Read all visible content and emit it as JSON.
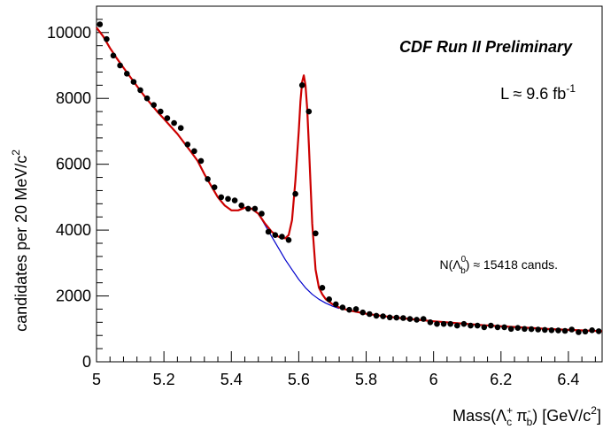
{
  "chart_data": {
    "type": "scatter",
    "annotations": {
      "experiment": "CDF Run II Preliminary",
      "luminosity": {
        "prefix": "L ≈ 9.6 fb",
        "sup": "-1"
      },
      "yield": {
        "prefix": "N(Λ",
        "sup": "0",
        "sub": "b",
        "suffix": ") ≈ 15418 cands."
      }
    },
    "xlabel": {
      "prefix": "Mass(Λ",
      "sup1": "+",
      "sub1": "c",
      "mid": " π",
      "sup2": "-",
      "sub2": "b",
      "suffix": ") [GeV/c",
      "sup3": "2",
      "end": "]"
    },
    "ylabel": {
      "prefix": "candidates per 20 MeV/c",
      "sup": "2"
    },
    "xlim": [
      5.0,
      6.5
    ],
    "ylim": [
      0,
      10800
    ],
    "xticks": [
      5.0,
      5.2,
      5.4,
      5.6,
      5.8,
      6.0,
      6.2,
      6.4
    ],
    "xtick_labels": [
      "5",
      "5.2",
      "5.4",
      "5.6",
      "5.8",
      "6",
      "6.2",
      "6.4"
    ],
    "yticks": [
      0,
      2000,
      4000,
      6000,
      8000,
      10000
    ],
    "ytick_labels": [
      "0",
      "2000",
      "4000",
      "6000",
      "8000",
      "10000"
    ],
    "grid": false,
    "legend": "none",
    "colors": {
      "data": "#000000",
      "fit": "#cc0000",
      "background": "#0000cc"
    },
    "series": [
      {
        "kind": "points",
        "x": [
          5.01,
          5.03,
          5.05,
          5.07,
          5.09,
          5.11,
          5.13,
          5.15,
          5.17,
          5.19,
          5.21,
          5.23,
          5.25,
          5.27,
          5.29,
          5.31,
          5.33,
          5.35,
          5.37,
          5.39,
          5.41,
          5.43,
          5.45,
          5.47,
          5.49,
          5.51,
          5.53,
          5.55,
          5.57,
          5.59,
          5.61,
          5.63,
          5.65,
          5.67,
          5.69,
          5.71,
          5.73,
          5.75,
          5.77,
          5.79,
          5.81,
          5.83,
          5.85,
          5.87,
          5.89,
          5.91,
          5.93,
          5.95,
          5.97,
          5.99,
          6.01,
          6.03,
          6.05,
          6.07,
          6.09,
          6.11,
          6.13,
          6.15,
          6.17,
          6.19,
          6.21,
          6.23,
          6.25,
          6.27,
          6.29,
          6.31,
          6.33,
          6.35,
          6.37,
          6.39,
          6.41,
          6.43,
          6.45,
          6.47,
          6.49
        ],
        "values": [
          10250,
          9800,
          9300,
          9000,
          8750,
          8500,
          8250,
          8000,
          7800,
          7600,
          7400,
          7250,
          7100,
          6600,
          6400,
          6100,
          5550,
          5300,
          5000,
          4950,
          4900,
          4750,
          4650,
          4650,
          4500,
          3950,
          3850,
          3800,
          3700,
          5100,
          8400,
          7600,
          3900,
          2250,
          1900,
          1750,
          1650,
          1580,
          1600,
          1500,
          1450,
          1400,
          1380,
          1350,
          1340,
          1330,
          1300,
          1280,
          1300,
          1200,
          1150,
          1150,
          1150,
          1100,
          1150,
          1100,
          1100,
          1050,
          1100,
          1050,
          1050,
          1000,
          1030,
          1000,
          990,
          980,
          970,
          960,
          950,
          940,
          980,
          900,
          920,
          960,
          930
        ]
      },
      {
        "kind": "line",
        "name": "fit",
        "x": [
          5.0,
          5.02,
          5.04,
          5.06,
          5.08,
          5.1,
          5.12,
          5.14,
          5.16,
          5.18,
          5.2,
          5.22,
          5.24,
          5.26,
          5.28,
          5.3,
          5.32,
          5.34,
          5.36,
          5.38,
          5.4,
          5.42,
          5.44,
          5.46,
          5.48,
          5.5,
          5.52,
          5.54,
          5.56,
          5.57,
          5.58,
          5.59,
          5.6,
          5.605,
          5.61,
          5.615,
          5.62,
          5.625,
          5.63,
          5.635,
          5.64,
          5.65,
          5.66,
          5.67,
          5.68,
          5.7,
          5.72,
          5.75,
          5.8,
          5.85,
          5.9,
          5.95,
          6.0,
          6.05,
          6.1,
          6.15,
          6.2,
          6.25,
          6.3,
          6.35,
          6.4,
          6.45,
          6.5
        ],
        "values": [
          10150,
          9880,
          9530,
          9220,
          8930,
          8650,
          8370,
          8100,
          7850,
          7600,
          7380,
          7150,
          6920,
          6650,
          6380,
          6100,
          5700,
          5350,
          5000,
          4750,
          4600,
          4600,
          4680,
          4650,
          4500,
          4200,
          3950,
          3800,
          3750,
          3850,
          4300,
          5500,
          7000,
          7900,
          8500,
          8700,
          8400,
          7700,
          6600,
          5400,
          4200,
          2800,
          2250,
          2050,
          1900,
          1750,
          1650,
          1560,
          1460,
          1390,
          1330,
          1280,
          1230,
          1190,
          1150,
          1110,
          1080,
          1050,
          1020,
          990,
          970,
          950,
          930
        ]
      },
      {
        "kind": "line",
        "name": "background",
        "x": [
          5.48,
          5.5,
          5.52,
          5.54,
          5.56,
          5.58,
          5.6,
          5.62,
          5.64,
          5.66,
          5.68,
          5.7,
          5.72
        ],
        "values": [
          4500,
          4150,
          3800,
          3450,
          3100,
          2800,
          2500,
          2250,
          2050,
          1900,
          1780,
          1690,
          1620
        ]
      }
    ]
  }
}
